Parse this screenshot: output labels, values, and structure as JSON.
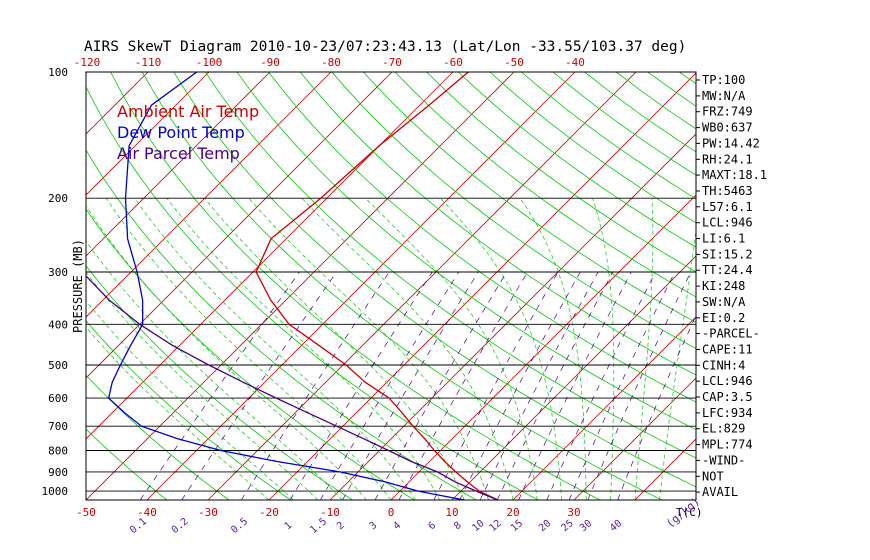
{
  "title": "AIRS SkewT Diagram 2010-10-23/07:23:43.13 (Lat/Lon -33.55/103.37 deg)",
  "colors": {
    "ambient": "#cc0000",
    "dewpoint": "#0000cc",
    "parcel": "#4b0082",
    "isotherm": "#cc0000",
    "dry_adiabat": "#00cc00",
    "moist_adiabat": "#00cc00",
    "mixing_ratio": "#4b0082",
    "isobar": "#000000",
    "border": "#000000"
  },
  "chart_data": {
    "type": "line",
    "title": "AIRS SkewT Diagram 2010-10-23/07:23:43.13 (Lat/Lon -33.55/103.37 deg)",
    "ylabel": "PRESSURE (MB)",
    "xlabel_right": "T(C)",
    "mixing_label": "(g/kg)",
    "y_log_scale": true,
    "ylim": [
      1050,
      100
    ],
    "xlim": [
      -50,
      50
    ],
    "pressure_ticks": [
      100,
      200,
      300,
      400,
      500,
      600,
      700,
      800,
      900,
      1000
    ],
    "top_temp_ticks": [
      -120,
      -110,
      -100,
      -90,
      -80,
      -70,
      -60,
      -50,
      -40
    ],
    "bottom_temp_ticks": [
      -50,
      -40,
      -30,
      -20,
      -10,
      0,
      10,
      20,
      30
    ],
    "mixing_ratio_ticks": [
      "0.1",
      "0.2",
      "0.5",
      "1",
      "1.5",
      "2",
      "3",
      "4",
      "6",
      "8",
      "10",
      "12",
      "15",
      "20",
      "25",
      "30",
      "40"
    ],
    "legend": [
      "Ambient Air Temp",
      "Dew Point Temp",
      "Air Parcel Temp"
    ],
    "series": [
      {
        "name": "Ambient Air Temp",
        "pressure": [
          1050,
          1000,
          950,
          900,
          850,
          800,
          750,
          700,
          650,
          600,
          550,
          500,
          450,
          400,
          350,
          300,
          250,
          200,
          150,
          120,
          100
        ],
        "temperature": [
          17.5,
          13.0,
          9.5,
          6.0,
          2.5,
          -1.0,
          -4.5,
          -8.5,
          -12.5,
          -17.0,
          -23.5,
          -29.5,
          -37.0,
          -45.5,
          -52.5,
          -59.5,
          -62.5,
          -61.0,
          -60.0,
          -58.5,
          -57.5
        ]
      },
      {
        "name": "Dew Point Temp",
        "pressure": [
          1050,
          1000,
          950,
          900,
          850,
          800,
          750,
          700,
          650,
          600,
          550,
          500,
          450,
          400,
          350,
          300,
          250,
          200,
          150,
          120,
          100
        ],
        "temperature": [
          12.0,
          3.0,
          -4.0,
          -13.0,
          -25.0,
          -36.0,
          -45.0,
          -53.0,
          -58.0,
          -63.0,
          -65.0,
          -66.5,
          -68.0,
          -69.5,
          -73.5,
          -79.0,
          -86.0,
          -93.0,
          -101.0,
          -104.0,
          -102.0
        ]
      },
      {
        "name": "Air Parcel Temp",
        "pressure": [
          1050,
          1000,
          950,
          900,
          850,
          800,
          750,
          700,
          650,
          600,
          550,
          500,
          450,
          400,
          350,
          300,
          250,
          200,
          150,
          120,
          100
        ],
        "temperature": [
          17.5,
          12.5,
          7.5,
          3.0,
          -3.0,
          -8.5,
          -14.5,
          -21.0,
          -28.0,
          -35.5,
          -43.5,
          -52.0,
          -61.0,
          -70.0,
          -79.0,
          -88.0,
          -97.0,
          -107.0,
          -118.0,
          -125.0,
          -130.0
        ]
      }
    ]
  },
  "indices": [
    "TP:100",
    "MW:N/A",
    "FRZ:749",
    "WB0:637",
    "PW:14.42",
    "RH:24.1",
    "MAXT:18.1",
    "TH:5463",
    "L57:6.1",
    "LCL:946",
    "LI:6.1",
    "SI:15.2",
    "TT:24.4",
    "KI:248",
    "SW:N/A",
    "EI:0.2",
    "-PARCEL-",
    "CAPE:11",
    "CINH:4",
    "LCL:946",
    "CAP:3.5",
    "LFC:934",
    "EL:829",
    "MPL:774",
    "-WIND-",
    "NOT",
    "AVAIL"
  ]
}
